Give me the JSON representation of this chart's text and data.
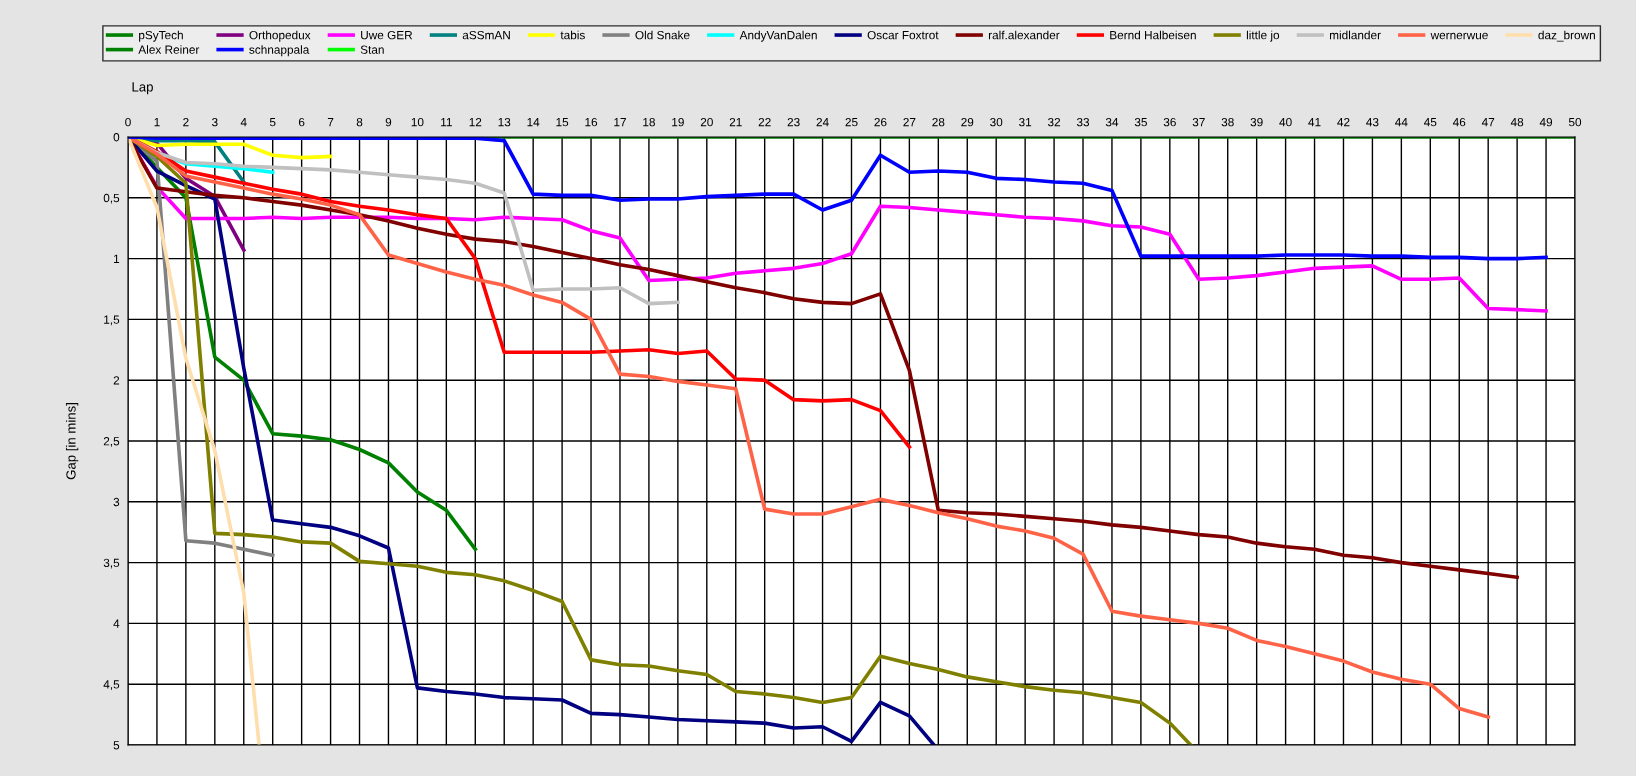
{
  "chart_data": {
    "type": "line",
    "xlabel": "Lap",
    "ylabel": "Gap [in mins]",
    "x": [
      0,
      1,
      2,
      3,
      4,
      5,
      6,
      7,
      8,
      9,
      10,
      11,
      12,
      13,
      14,
      15,
      16,
      17,
      18,
      19,
      20,
      21,
      22,
      23,
      24,
      25,
      26,
      27,
      28,
      29,
      30,
      31,
      32,
      33,
      34,
      35,
      36,
      37,
      38,
      39,
      40,
      41,
      42,
      43,
      44,
      45,
      46,
      47,
      48,
      49,
      50
    ],
    "xlim": [
      0,
      50
    ],
    "xticks": [
      0,
      1,
      2,
      3,
      4,
      5,
      6,
      7,
      8,
      9,
      10,
      11,
      12,
      13,
      14,
      15,
      16,
      17,
      18,
      19,
      20,
      21,
      22,
      23,
      24,
      25,
      26,
      27,
      28,
      29,
      30,
      31,
      32,
      33,
      34,
      35,
      36,
      37,
      38,
      39,
      40,
      41,
      42,
      43,
      44,
      45,
      46,
      47,
      48,
      49,
      50
    ],
    "ylim": [
      5,
      0
    ],
    "yticks": [
      {
        "value": 0,
        "label": "0"
      },
      {
        "value": 0.5,
        "label": "0,5"
      },
      {
        "value": 1,
        "label": "1"
      },
      {
        "value": 1.5,
        "label": "1,5"
      },
      {
        "value": 2,
        "label": "2"
      },
      {
        "value": 2.5,
        "label": "2,5"
      },
      {
        "value": 3,
        "label": "3"
      },
      {
        "value": 3.5,
        "label": "3,5"
      },
      {
        "value": 4,
        "label": "4"
      },
      {
        "value": 4.5,
        "label": "4,5"
      },
      {
        "value": 5,
        "label": "5"
      }
    ],
    "grid": true,
    "legend": "top",
    "line_style": "solid",
    "marker": "none",
    "series": [
      {
        "name": "pSyTech",
        "color": "#008000",
        "values": [
          0,
          0.25,
          0.5,
          1.81,
          2.0,
          2.44,
          2.46,
          2.49,
          2.57,
          2.68,
          2.92,
          3.07,
          3.39,
          null,
          null,
          null,
          null,
          null,
          null,
          null,
          null,
          null,
          null,
          null,
          null,
          null,
          null,
          null,
          null,
          null,
          null,
          null,
          null,
          null,
          null,
          null,
          null,
          null,
          null,
          null,
          null,
          null,
          null,
          null,
          null,
          null,
          null,
          null,
          null,
          null,
          null
        ]
      },
      {
        "name": "Orthopedux",
        "color": "#800080",
        "values": [
          0,
          0.05,
          0.34,
          0.49,
          0.93,
          null,
          null,
          null,
          null,
          null,
          null,
          null,
          null,
          null,
          null,
          null,
          null,
          null,
          null,
          null,
          null,
          null,
          null,
          null,
          null,
          null,
          null,
          null,
          null,
          null,
          null,
          null,
          null,
          null,
          null,
          null,
          null,
          null,
          null,
          null,
          null,
          null,
          null,
          null,
          null,
          null,
          null,
          null,
          null,
          null,
          null
        ]
      },
      {
        "name": "Uwe GER",
        "color": "#ff00ff",
        "values": [
          0,
          0.41,
          0.67,
          0.67,
          0.67,
          0.66,
          0.67,
          0.66,
          0.66,
          0.66,
          0.67,
          0.67,
          0.68,
          0.66,
          0.67,
          0.68,
          0.77,
          0.83,
          1.18,
          1.17,
          1.16,
          1.12,
          1.1,
          1.08,
          1.04,
          0.96,
          0.57,
          0.58,
          0.6,
          0.62,
          0.64,
          0.66,
          0.67,
          0.69,
          0.73,
          0.74,
          0.8,
          1.17,
          1.16,
          1.14,
          1.11,
          1.08,
          1.07,
          1.06,
          1.17,
          1.17,
          1.16,
          1.41,
          1.42,
          1.43,
          null
        ]
      },
      {
        "name": "aSSmAN",
        "color": "#008080",
        "values": [
          0,
          0.03,
          0.03,
          0.04,
          0.37,
          null,
          null,
          null,
          null,
          null,
          null,
          null,
          null,
          null,
          null,
          null,
          null,
          null,
          null,
          null,
          null,
          null,
          null,
          null,
          null,
          null,
          null,
          null,
          null,
          null,
          null,
          null,
          null,
          null,
          null,
          null,
          null,
          null,
          null,
          null,
          null,
          null,
          null,
          null,
          null,
          null,
          null,
          null,
          null,
          null,
          null
        ]
      },
      {
        "name": "tabis",
        "color": "#ffff00",
        "values": [
          0,
          0.07,
          0.06,
          0.06,
          0.06,
          0.15,
          0.17,
          0.16,
          null,
          null,
          null,
          null,
          null,
          null,
          null,
          null,
          null,
          null,
          null,
          null,
          null,
          null,
          null,
          null,
          null,
          null,
          null,
          null,
          null,
          null,
          null,
          null,
          null,
          null,
          null,
          null,
          null,
          null,
          null,
          null,
          null,
          null,
          null,
          null,
          null,
          null,
          null,
          null,
          null,
          null,
          null
        ]
      },
      {
        "name": "Old Snake",
        "color": "#808080",
        "values": [
          0,
          0.2,
          3.32,
          3.34,
          3.39,
          3.44,
          null,
          null,
          null,
          null,
          null,
          null,
          null,
          null,
          null,
          null,
          null,
          null,
          null,
          null,
          null,
          null,
          null,
          null,
          null,
          null,
          null,
          null,
          null,
          null,
          null,
          null,
          null,
          null,
          null,
          null,
          null,
          null,
          null,
          null,
          null,
          null,
          null,
          null,
          null,
          null,
          null,
          null,
          null,
          null,
          null
        ]
      },
      {
        "name": "AndyVanDalen",
        "color": "#00ffff",
        "values": [
          0,
          0.13,
          0.22,
          0.24,
          0.26,
          0.29,
          null,
          null,
          null,
          null,
          null,
          null,
          null,
          null,
          null,
          null,
          null,
          null,
          null,
          null,
          null,
          null,
          null,
          null,
          null,
          null,
          null,
          null,
          null,
          null,
          null,
          null,
          null,
          null,
          null,
          null,
          null,
          null,
          null,
          null,
          null,
          null,
          null,
          null,
          null,
          null,
          null,
          null,
          null,
          null,
          null
        ]
      },
      {
        "name": "Oscar Foxtrot",
        "color": "#000080",
        "x": [
          0,
          1,
          2,
          3,
          4,
          5,
          6,
          7,
          8,
          9,
          10,
          11,
          12,
          13,
          14,
          15,
          16,
          17,
          18,
          19,
          20,
          21,
          22,
          23,
          24,
          25,
          26,
          27,
          27.85
        ],
        "values": [
          0,
          0.28,
          0.4,
          0.51,
          1.9,
          3.15,
          3.18,
          3.21,
          3.28,
          3.38,
          4.53,
          4.56,
          4.58,
          4.61,
          4.62,
          4.63,
          4.74,
          4.75,
          4.77,
          4.79,
          4.8,
          4.81,
          4.82,
          4.86,
          4.85,
          4.97,
          4.65,
          4.76,
          5
        ]
      },
      {
        "name": "ralf.alexander",
        "color": "#800000",
        "values": [
          0,
          0.42,
          0.45,
          0.48,
          0.5,
          0.53,
          0.56,
          0.6,
          0.64,
          0.69,
          0.75,
          0.8,
          0.84,
          0.86,
          0.9,
          0.95,
          1.0,
          1.05,
          1.09,
          1.14,
          1.19,
          1.24,
          1.28,
          1.33,
          1.36,
          1.37,
          1.29,
          1.92,
          3.07,
          3.09,
          3.1,
          3.12,
          3.14,
          3.16,
          3.19,
          3.21,
          3.24,
          3.27,
          3.29,
          3.34,
          3.37,
          3.39,
          3.44,
          3.46,
          3.5,
          3.53,
          3.56,
          3.59,
          3.62,
          null,
          null
        ]
      },
      {
        "name": "Bernd Halbeisen",
        "color": "#ff0000",
        "values": [
          0,
          0.12,
          0.28,
          0.33,
          0.38,
          0.43,
          0.47,
          0.53,
          0.57,
          0.6,
          0.64,
          0.67,
          1.0,
          1.77,
          1.77,
          1.77,
          1.77,
          1.76,
          1.75,
          1.78,
          1.76,
          1.99,
          2.0,
          2.16,
          2.17,
          2.16,
          2.25,
          2.55,
          null,
          null,
          null,
          null,
          null,
          null,
          null,
          null,
          null,
          null,
          null,
          null,
          null,
          null,
          null,
          null,
          null,
          null,
          null,
          null,
          null,
          null,
          null
        ]
      },
      {
        "name": "little jo",
        "color": "#808000",
        "x": [
          0,
          1,
          2,
          3,
          4,
          5,
          6,
          7,
          8,
          9,
          10,
          11,
          12,
          13,
          14,
          15,
          16,
          17,
          18,
          19,
          20,
          21,
          22,
          23,
          24,
          25,
          26,
          27,
          28,
          29,
          30,
          31,
          32,
          33,
          34,
          35,
          36,
          36.72
        ],
        "values": [
          0,
          0.16,
          0.38,
          3.26,
          3.27,
          3.29,
          3.33,
          3.34,
          3.49,
          3.51,
          3.53,
          3.58,
          3.6,
          3.65,
          3.73,
          3.82,
          4.3,
          4.34,
          4.35,
          4.39,
          4.42,
          4.56,
          4.58,
          4.61,
          4.65,
          4.61,
          4.27,
          4.33,
          4.38,
          4.44,
          4.48,
          4.52,
          4.55,
          4.57,
          4.61,
          4.65,
          4.82,
          5
        ]
      },
      {
        "name": "midlander",
        "color": "#c0c0c0",
        "values": [
          0,
          0.13,
          0.21,
          0.22,
          0.24,
          0.25,
          0.26,
          0.27,
          0.29,
          0.31,
          0.33,
          0.35,
          0.38,
          0.46,
          1.26,
          1.25,
          1.25,
          1.24,
          1.37,
          1.36,
          null,
          null,
          null,
          null,
          null,
          null,
          null,
          null,
          null,
          null,
          null,
          null,
          null,
          null,
          null,
          null,
          null,
          null,
          null,
          null,
          null,
          null,
          null,
          null,
          null,
          null,
          null,
          null,
          null,
          null,
          null
        ]
      },
      {
        "name": "wernerwue",
        "color": "#ff6347",
        "values": [
          0,
          0.14,
          0.32,
          0.37,
          0.42,
          0.47,
          0.51,
          0.56,
          0.64,
          0.97,
          1.04,
          1.11,
          1.17,
          1.22,
          1.3,
          1.36,
          1.5,
          1.95,
          1.97,
          2.01,
          2.04,
          2.07,
          3.06,
          3.1,
          3.1,
          3.04,
          2.98,
          3.03,
          3.09,
          3.14,
          3.2,
          3.24,
          3.3,
          3.43,
          3.9,
          3.94,
          3.97,
          4.0,
          4.04,
          4.14,
          4.19,
          4.25,
          4.31,
          4.4,
          4.46,
          4.5,
          4.7,
          4.77,
          null,
          null,
          null
        ]
      },
      {
        "name": "daz_brown",
        "color": "#ffdead",
        "x": [
          0,
          1,
          2,
          3,
          4,
          4.53
        ],
        "values": [
          0,
          0.58,
          1.82,
          2.58,
          3.75,
          5
        ]
      },
      {
        "name": "Alex Reiner",
        "color": "#008000",
        "values": [
          null,
          null,
          null,
          null,
          null,
          null,
          null,
          null,
          null,
          null,
          null,
          null,
          0,
          0,
          0,
          0,
          0,
          0,
          0,
          0,
          0,
          0,
          0,
          0,
          0,
          0,
          0,
          0,
          0,
          0,
          0,
          0,
          0,
          0,
          0,
          0,
          0,
          0,
          0,
          0,
          0,
          0,
          0,
          0,
          0,
          0,
          0,
          0,
          0,
          0,
          0
        ]
      },
      {
        "name": "schnappala",
        "color": "#0000ff",
        "values": [
          0,
          0.01,
          0.01,
          0.01,
          0.01,
          0.01,
          0.01,
          0.01,
          0.01,
          0.01,
          0.01,
          0.01,
          0.01,
          0.03,
          0.47,
          0.48,
          0.48,
          0.52,
          0.51,
          0.51,
          0.49,
          0.48,
          0.47,
          0.47,
          0.6,
          0.52,
          0.15,
          0.29,
          0.28,
          0.29,
          0.34,
          0.35,
          0.37,
          0.38,
          0.44,
          0.98,
          0.98,
          0.98,
          0.98,
          0.98,
          0.97,
          0.97,
          0.97,
          0.98,
          0.98,
          0.99,
          0.99,
          1.0,
          1.0,
          0.99,
          null
        ]
      },
      {
        "name": "Stan",
        "color": "#00ff00",
        "values": [
          null,
          null,
          null,
          null,
          null,
          null,
          null,
          null,
          null,
          null,
          null,
          null,
          null,
          null,
          null,
          null,
          null,
          null,
          null,
          null,
          null,
          null,
          null,
          null,
          null,
          null,
          null,
          null,
          null,
          null,
          null,
          null,
          null,
          null,
          null,
          null,
          null,
          null,
          null,
          null,
          null,
          null,
          null,
          null,
          null,
          null,
          null,
          null,
          null,
          null,
          null
        ]
      }
    ]
  }
}
